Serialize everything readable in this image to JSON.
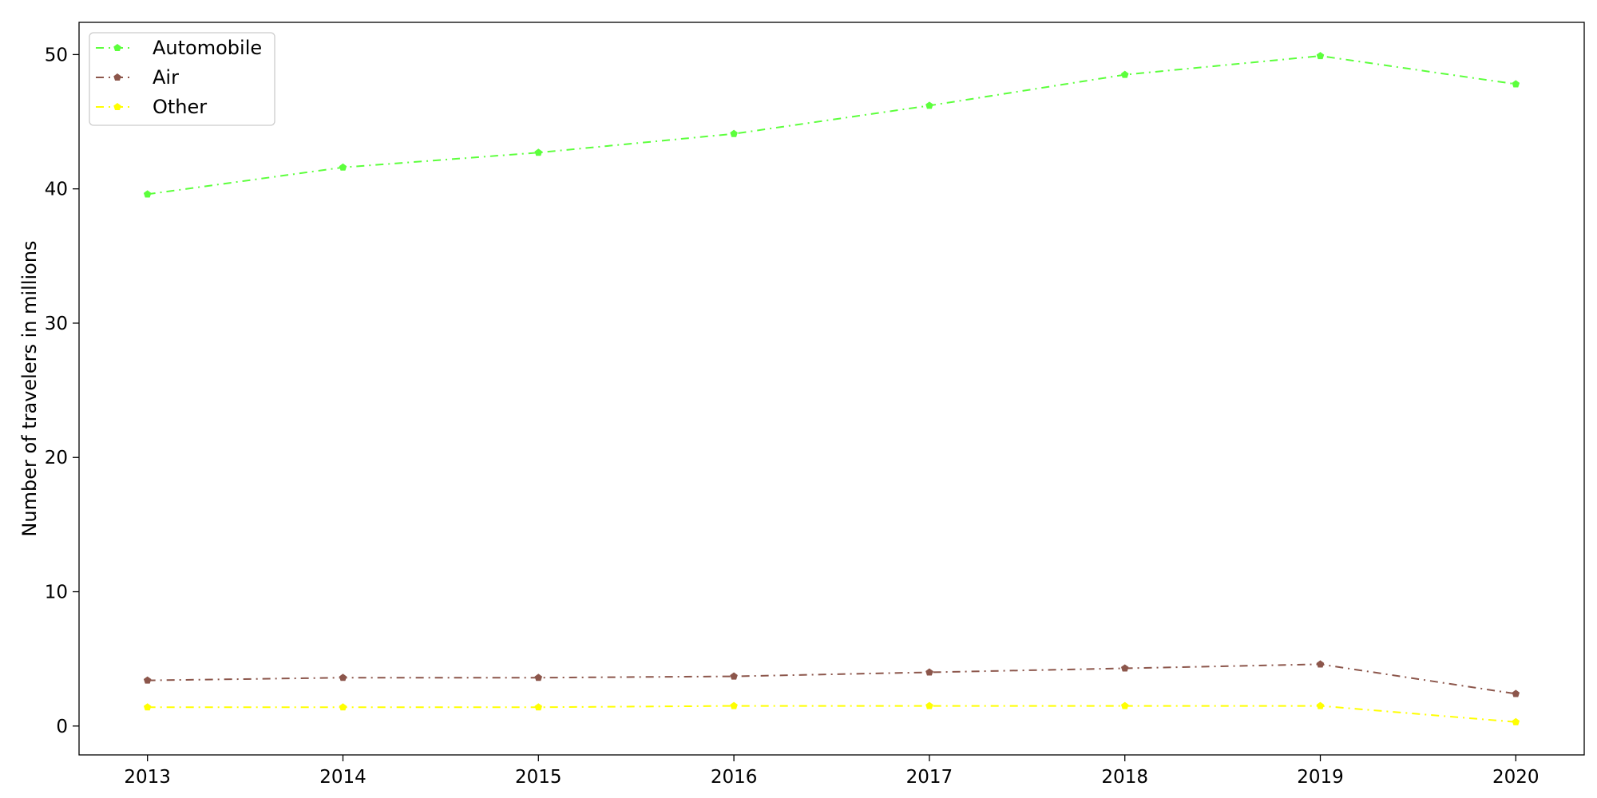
{
  "chart_data": {
    "type": "line",
    "title": "",
    "xlabel": "",
    "ylabel": "Number of travelers in millions",
    "x": [
      "2013",
      "2014",
      "2015",
      "2016",
      "2017",
      "2018",
      "2019",
      "2020"
    ],
    "xlim": [
      2012.65,
      2020.35
    ],
    "ylim": [
      -2.15,
      52.4
    ],
    "yticks": [
      0,
      10,
      20,
      30,
      40,
      50
    ],
    "grid": false,
    "legend_position": "top-left",
    "series": [
      {
        "name": "Automobile",
        "color": "#5cff3c",
        "marker": "pentagon",
        "line_style": "dash-dot",
        "values": [
          39.6,
          41.6,
          42.7,
          44.1,
          46.2,
          48.5,
          49.9,
          47.8
        ]
      },
      {
        "name": "Air",
        "color": "#8c564b",
        "marker": "pentagon",
        "line_style": "dash-dot",
        "values": [
          3.4,
          3.6,
          3.6,
          3.7,
          4.0,
          4.3,
          4.6,
          2.4
        ]
      },
      {
        "name": "Other",
        "color": "#ffff00",
        "marker": "pentagon",
        "line_style": "dash-dot",
        "values": [
          1.4,
          1.4,
          1.4,
          1.5,
          1.5,
          1.5,
          1.5,
          0.3
        ]
      }
    ]
  }
}
